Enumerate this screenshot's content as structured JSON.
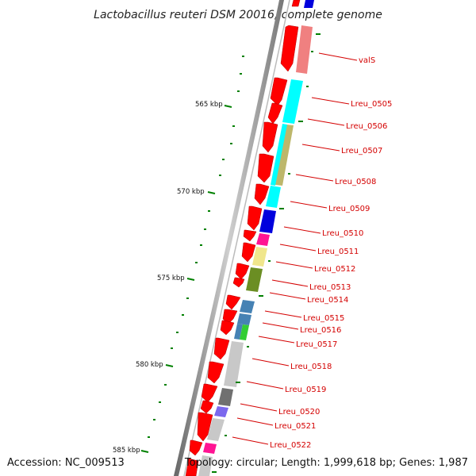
{
  "title": "Lactobacillus reuteri DSM 20016, complete genome",
  "footer": {
    "accession": "Accession: NC_009513",
    "topology": "Topology: circular; Length: 1,999,618 bp; Genes: 1,987"
  },
  "ruler_ticks": [
    "565 kbp",
    "570 kbp",
    "575 kbp",
    "580 kbp",
    "585 kbp"
  ],
  "gene_labels": [
    "valS",
    "Lreu_0505",
    "Lreu_0506",
    "Lreu_0507",
    "Lreu_0508",
    "Lreu_0509",
    "Lreu_0510",
    "Lreu_0511",
    "Lreu_0512",
    "Lreu_0513",
    "Lreu_0514",
    "Lreu_0515",
    "Lreu_0516",
    "Lreu_0517",
    "Lreu_0518",
    "Lreu_0519",
    "Lreu_0520",
    "Lreu_0521",
    "Lreu_0522"
  ],
  "colors": {
    "gene_arrow": "#ff0000",
    "label": "#d40000",
    "ruler": "#888888",
    "tick": "#008000"
  }
}
